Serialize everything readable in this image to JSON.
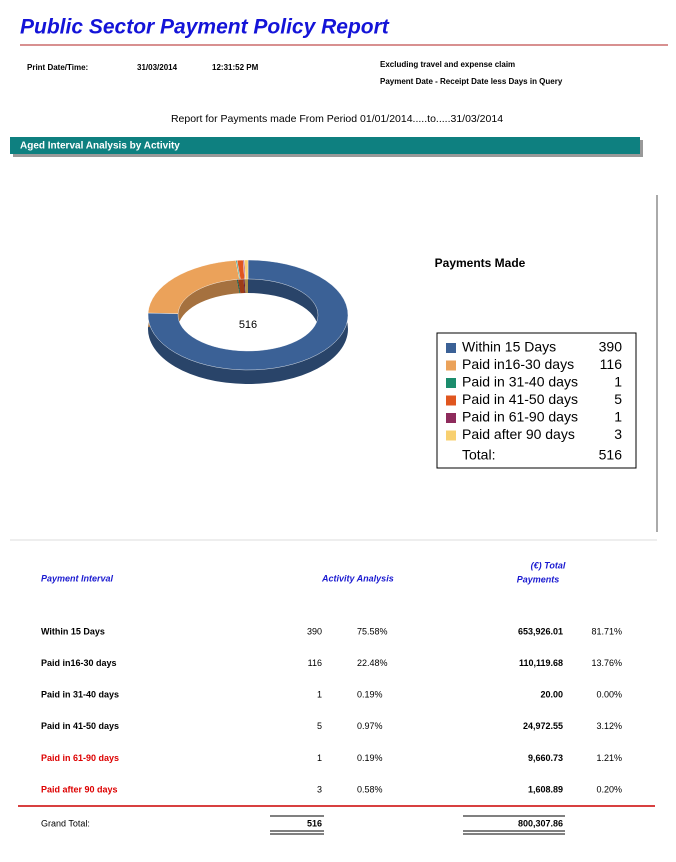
{
  "header": {
    "title": "Public Sector Payment Policy Report",
    "print_label": "Print Date/Time:",
    "print_date": "31/03/2014",
    "print_time": "12:31:52 PM",
    "note_1": "Excluding travel and expense claim",
    "note_2": "Payment Date - Receipt  Date less Days in Query"
  },
  "period": "Report for Payments made From Period 01/01/2014.....to.....31/03/2014",
  "section": "Aged Interval Analysis by Activity",
  "chart_data": {
    "type": "pie",
    "title": "Payments Made",
    "donut": true,
    "categories": [
      "Within 15 Days",
      "Paid in16-30 days",
      "Paid in 31-40 days",
      "Paid in 41-50 days",
      "Paid in 61-90 days",
      "Paid after 90 days"
    ],
    "values": [
      390,
      116,
      1,
      5,
      1,
      3
    ],
    "colors": [
      "#3b6196",
      "#eba25a",
      "#1b8c6c",
      "#e0561f",
      "#8e2b5c",
      "#f8d070"
    ],
    "total": 516,
    "total_label": "Total:"
  },
  "table": {
    "columns": [
      "Payment Interval",
      "Activity Analysis"
    ],
    "col_total": [
      "(€) Total",
      "Payments"
    ],
    "rows": [
      [
        "Within 15 Days",
        "390",
        "75.58%",
        "653,926.01",
        "81.71%"
      ],
      [
        "Paid in16-30 days",
        "116",
        "22.48%",
        "110,119.68",
        "13.76%"
      ],
      [
        "Paid in 31-40 days",
        "1",
        "0.19%",
        "20.00",
        "0.00%"
      ],
      [
        "Paid in 41-50 days",
        "5",
        "0.97%",
        "24,972.55",
        "3.12%"
      ],
      [
        "Paid in 61-90 days",
        "1",
        "0.19%",
        "9,660.73",
        "1.21%"
      ],
      [
        "Paid after 90 days",
        "3",
        "0.58%",
        "1,608.89",
        "0.20%"
      ]
    ],
    "red_rows": [
      4,
      5
    ],
    "grand_total": [
      "Grand Total:",
      "516",
      "800,307.86"
    ]
  }
}
